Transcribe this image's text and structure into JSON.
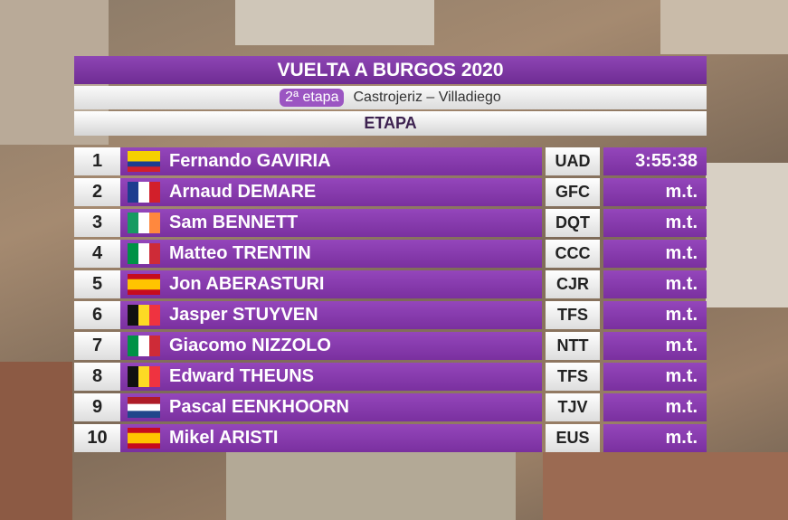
{
  "header": {
    "title": "VUELTA A BURGOS 2020",
    "stage": "2ª etapa",
    "route": "Castrojeriz – Villadiego",
    "section": "ETAPA"
  },
  "table": {
    "rows": [
      [
        "1",
        "Fernando GAVIRIA",
        "UAD",
        "3:55:38"
      ],
      [
        "2",
        "Arnaud DEMARE",
        "GFC",
        "m.t."
      ],
      [
        "3",
        "Sam BENNETT",
        "DQT",
        "m.t."
      ],
      [
        "4",
        "Matteo TRENTIN",
        "CCC",
        "m.t."
      ],
      [
        "5",
        "Jon ABERASTURI",
        "CJR",
        "m.t."
      ],
      [
        "6",
        "Jasper STUYVEN",
        "TFS",
        "m.t."
      ],
      [
        "7",
        "Giacomo NIZZOLO",
        "NTT",
        "m.t."
      ],
      [
        "8",
        "Edward THEUNS",
        "TFS",
        "m.t."
      ],
      [
        "9",
        "Pascal EENKHOORN",
        "TJV",
        "m.t."
      ],
      [
        "10",
        "Mikel ARISTI",
        "EUS",
        "m.t."
      ]
    ]
  }
}
